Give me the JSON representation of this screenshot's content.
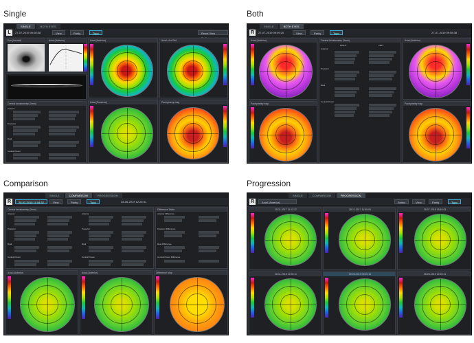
{
  "headings": {
    "single": "Single",
    "both": "Both",
    "comparison": "Comparison",
    "progression": "Progression"
  },
  "single": {
    "tabs": [
      "SINGLE",
      "BOTH EYES"
    ],
    "eye": "L",
    "date": "27-07-2019 09:08:38",
    "view": "View",
    "parity": "Parity",
    "topo": "Topo",
    "reset": "Reset View Settings",
    "sub_eye": "Eye (Iris/dat)",
    "sub_axial": "Axial (Anterior)",
    "sub_axial2": "Axial (Anterior)",
    "sub_axial3": "Axial / Ant Ref",
    "sub_axpost": "Axial (Posterior)",
    "sub_pach": "Pachymetry map",
    "sub_kera": "Central keratometry (3mm)",
    "section_labels": [
      "Anterior",
      "Posterior",
      "Real",
      "Central Power"
    ]
  },
  "both": {
    "tabs": [
      "SINGLE",
      "BOTH EYES"
    ],
    "eye": "R",
    "date_left": "27-07-2019 09:09:20",
    "date_right": "27-07-2019 09:08:38",
    "view": "View",
    "parity": "Parity",
    "topo": "Topo",
    "sub_axial_l": "Axial (Anterior)",
    "sub_kera": "Central keratometry (3mm)",
    "sub_axial_r": "Axial (Anterior)",
    "sub_pach_l": "Pachymetry map",
    "sub_pach_r": "Pachymetry map",
    "col_right": "RIGHT",
    "col_left": "LEFT",
    "section_labels": [
      "Anterior",
      "Posterior",
      "Real",
      "Central Power"
    ]
  },
  "comparison": {
    "tabs": [
      "SINGLE",
      "COMPARISON",
      "PROGRESSION"
    ],
    "eye": "R",
    "date_left": "28-03-2018 11:54:32",
    "date_right": "28-06-2019 12:26:41",
    "view": "View",
    "parity": "Parity",
    "topo": "Topo",
    "sub_kera": "Central keratometry (3mm)",
    "sub_diff": "Difference Table",
    "sub_axial_l": "Axial (Anterior)",
    "sub_axial_r": "Axial (Anterior)",
    "sub_diffmap": "Difference Map",
    "section_labels": [
      "Anterior",
      "Posterior",
      "Real",
      "Central Power"
    ],
    "diff_labels": [
      "Anterior Difference",
      "Posterior Difference",
      "Real Difference",
      "Central Power Difference"
    ]
  },
  "progression": {
    "tabs": [
      "SINGLE",
      "COMPARISON",
      "PROGRESSION"
    ],
    "eye": "R",
    "sub_select": "Axial (Anterior)",
    "select": "Select",
    "view": "View",
    "parity": "Parity",
    "topo": "Topo",
    "map_dates": [
      "28-11-2017 11:12:37",
      "28-11-2017 11:55:00",
      "28-07-2018 16:54:03",
      "28-11-2018 12:20:11",
      "29-03-2019 09:20:16",
      "28-06-2019 12:26:41"
    ]
  },
  "colors": {
    "background": "#2a2d33",
    "accent": "#3fa7d6"
  }
}
